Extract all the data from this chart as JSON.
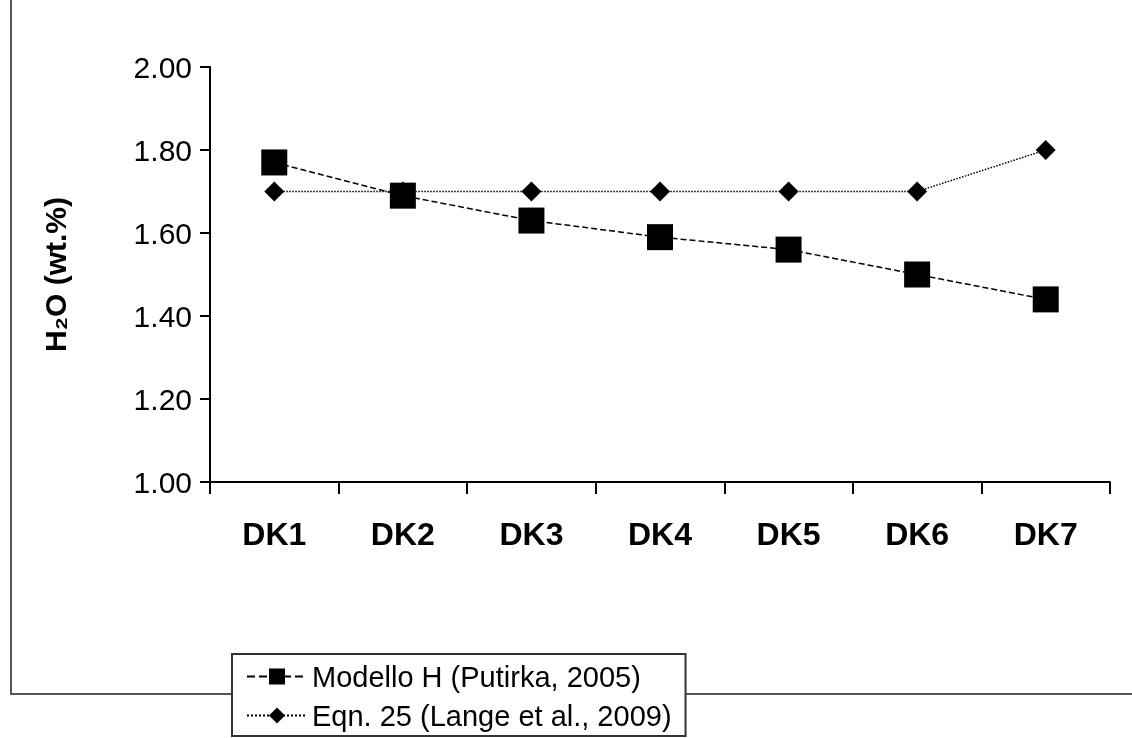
{
  "chart_data": {
    "type": "line",
    "ylabel": "H₂O (wt.%)",
    "categories": [
      "DK1",
      "DK2",
      "DK3",
      "DK4",
      "DK5",
      "DK6",
      "DK7"
    ],
    "series": [
      {
        "name": "Modello H (Putirka, 2005)",
        "color": "#000000",
        "marker": "square",
        "line_style": "dashed",
        "values": [
          1.77,
          1.69,
          1.63,
          1.59,
          1.56,
          1.5,
          1.44
        ]
      },
      {
        "name": "Eqn. 25 (Lange et al., 2009)",
        "color": "#000000",
        "marker": "diamond",
        "line_style": "dotted",
        "values": [
          1.7,
          1.7,
          1.7,
          1.7,
          1.7,
          1.7,
          1.8
        ]
      }
    ],
    "ylim": [
      1.0,
      2.0
    ],
    "yticks": [
      {
        "value": 1.0,
        "label": "1.00"
      },
      {
        "value": 1.2,
        "label": "1.20"
      },
      {
        "value": 1.4,
        "label": "1.40"
      },
      {
        "value": 1.6,
        "label": "1.60"
      },
      {
        "value": 1.8,
        "label": "1.80"
      },
      {
        "value": 2.0,
        "label": "2.00"
      }
    ],
    "grid": false,
    "legend": "bottom"
  }
}
